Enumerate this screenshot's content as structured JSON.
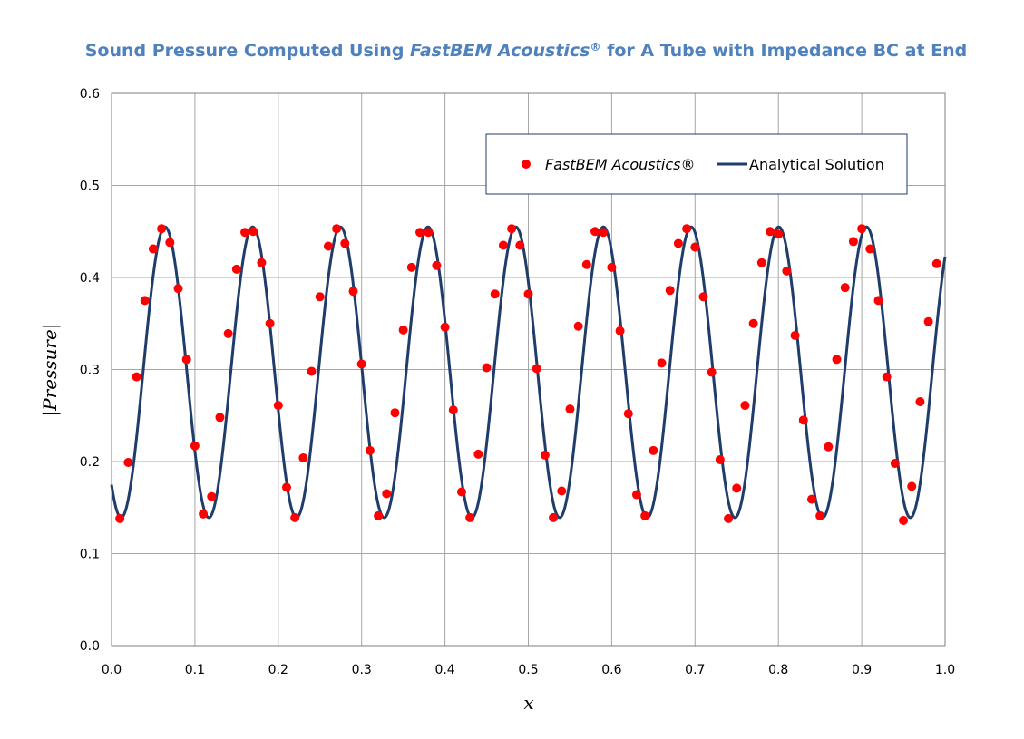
{
  "chart_data": {
    "type": "scatter",
    "title": {
      "part1": "Sound Pressure Computed Using ",
      "part2_italic": "FastBEM Acoustics",
      "part3_sup": "®",
      "part4": " for A Tube with Impedance BC at End"
    },
    "xlabel": "x",
    "ylabel": "|Pressure|",
    "xlim": [
      0.0,
      1.0
    ],
    "ylim": [
      0.0,
      0.6
    ],
    "x_ticks": [
      "0.0",
      "0.1",
      "0.2",
      "0.3",
      "0.4",
      "0.5",
      "0.6",
      "0.7",
      "0.8",
      "0.9",
      "1.0"
    ],
    "y_ticks": [
      "0.0",
      "0.1",
      "0.2",
      "0.3",
      "0.4",
      "0.5",
      "0.6"
    ],
    "grid": true,
    "legend": {
      "position": "top-right",
      "entries": [
        {
          "label": "FastBEM Acoustics®",
          "italic": true,
          "marker": "circle"
        },
        {
          "label": "Analytical Solution",
          "italic": false,
          "marker": "line"
        }
      ]
    },
    "colors": {
      "points": "#ff0000",
      "line": "#1f3d6b",
      "title": "#4f81bd",
      "grid": "#a6a6a6"
    },
    "series": [
      {
        "name": "FastBEM Acoustics®",
        "kind": "points",
        "x": [
          0.01,
          0.02,
          0.03,
          0.04,
          0.05,
          0.06,
          0.07,
          0.08,
          0.09,
          0.1,
          0.11,
          0.12,
          0.13,
          0.14,
          0.15,
          0.16,
          0.17,
          0.18,
          0.19,
          0.2,
          0.21,
          0.22,
          0.23,
          0.24,
          0.25,
          0.26,
          0.27,
          0.28,
          0.29,
          0.3,
          0.31,
          0.32,
          0.33,
          0.34,
          0.35,
          0.36,
          0.37,
          0.38,
          0.39,
          0.4,
          0.41,
          0.42,
          0.43,
          0.44,
          0.45,
          0.46,
          0.47,
          0.48,
          0.49,
          0.5,
          0.51,
          0.52,
          0.53,
          0.54,
          0.55,
          0.56,
          0.57,
          0.58,
          0.59,
          0.6,
          0.61,
          0.62,
          0.63,
          0.64,
          0.65,
          0.66,
          0.67,
          0.68,
          0.69,
          0.7,
          0.71,
          0.72,
          0.73,
          0.74,
          0.75,
          0.76,
          0.77,
          0.78,
          0.79,
          0.8,
          0.81,
          0.82,
          0.83,
          0.84,
          0.85,
          0.86,
          0.87,
          0.88,
          0.89,
          0.9,
          0.91,
          0.92,
          0.93,
          0.94,
          0.95,
          0.96,
          0.97,
          0.98,
          0.99
        ],
        "y": [
          0.138,
          0.199,
          0.292,
          0.375,
          0.431,
          0.453,
          0.438,
          0.388,
          0.311,
          0.217,
          0.143,
          0.162,
          0.248,
          0.339,
          0.409,
          0.449,
          0.45,
          0.416,
          0.35,
          0.261,
          0.172,
          0.139,
          0.204,
          0.298,
          0.379,
          0.434,
          0.453,
          0.437,
          0.385,
          0.306,
          0.212,
          0.141,
          0.165,
          0.253,
          0.343,
          0.411,
          0.449,
          0.449,
          0.413,
          0.346,
          0.256,
          0.167,
          0.139,
          0.208,
          0.302,
          0.382,
          0.435,
          0.453,
          0.435,
          0.382,
          0.301,
          0.207,
          0.139,
          0.168,
          0.257,
          0.347,
          0.414,
          0.45,
          0.449,
          0.411,
          0.342,
          0.252,
          0.164,
          0.141,
          0.212,
          0.307,
          0.386,
          0.437,
          0.453,
          0.433,
          0.379,
          0.297,
          0.202,
          0.138,
          0.171,
          0.261,
          0.35,
          0.416,
          0.45,
          0.447,
          0.407,
          0.337,
          0.245,
          0.159,
          0.141,
          0.216,
          0.311,
          0.389,
          0.439,
          0.453,
          0.431,
          0.375,
          0.292,
          0.198,
          0.136,
          0.173,
          0.265,
          0.352,
          0.415
        ]
      },
      {
        "name": "Analytical Solution",
        "kind": "line",
        "model": {
          "mean": 0.297,
          "amplitude": 0.158,
          "period": 0.1052,
          "phase_x_at_min": 0.0115
        }
      }
    ]
  }
}
